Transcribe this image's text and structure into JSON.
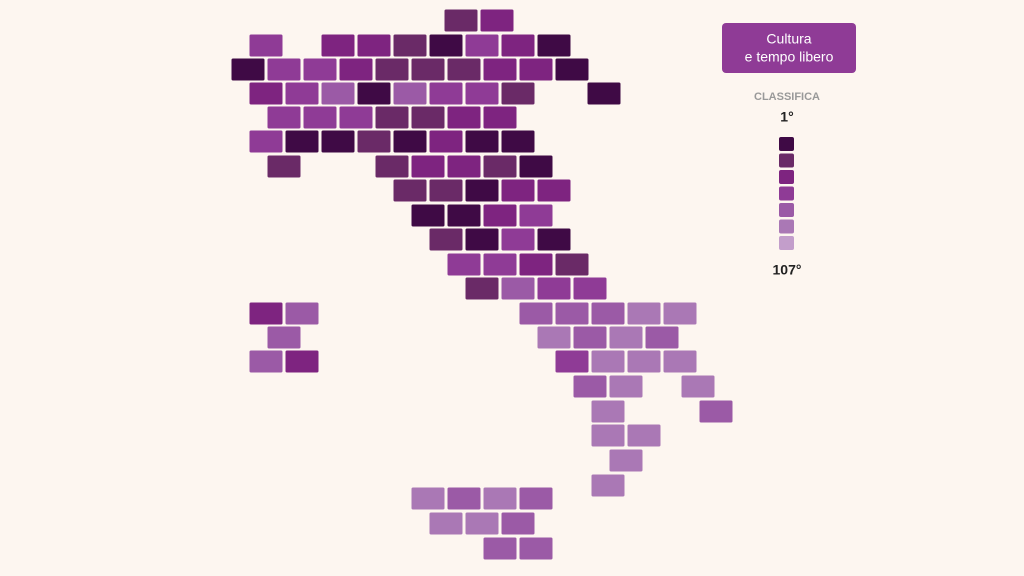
{
  "header": {
    "title": [
      "Cultura",
      "e tempo libero"
    ]
  },
  "legend": {
    "label": "CLASSIFICA",
    "top": "1°",
    "bottom": "107°",
    "colors": [
      "#3f0a45",
      "#6a2a67",
      "#7e2480",
      "#8f3b96",
      "#9b5aa6",
      "#aa78b5",
      "#c39ecb"
    ]
  },
  "map": {
    "tiles": [
      2,
      3,
      4,
      3,
      3,
      2,
      1,
      4,
      3,
      1,
      1,
      4,
      4,
      3,
      2,
      2,
      2,
      3,
      3,
      1,
      3,
      4,
      5,
      1,
      5,
      4,
      4,
      2,
      1,
      4,
      4,
      4,
      2,
      2,
      3,
      3,
      4,
      1,
      1,
      2,
      1,
      3,
      1,
      1,
      2,
      2,
      3,
      3,
      2,
      1,
      2,
      2,
      1,
      3,
      3,
      1,
      1,
      3,
      4,
      2,
      1,
      4,
      1,
      4,
      4,
      3,
      2,
      2,
      5,
      4,
      4,
      3,
      5,
      5,
      5,
      5,
      6,
      6,
      5,
      6,
      5,
      6,
      5,
      5,
      3,
      4,
      6,
      6,
      6,
      5,
      6,
      6,
      6,
      5,
      6,
      6,
      6,
      6,
      6,
      5,
      6,
      5,
      6,
      6,
      5,
      5,
      5
    ]
  }
}
